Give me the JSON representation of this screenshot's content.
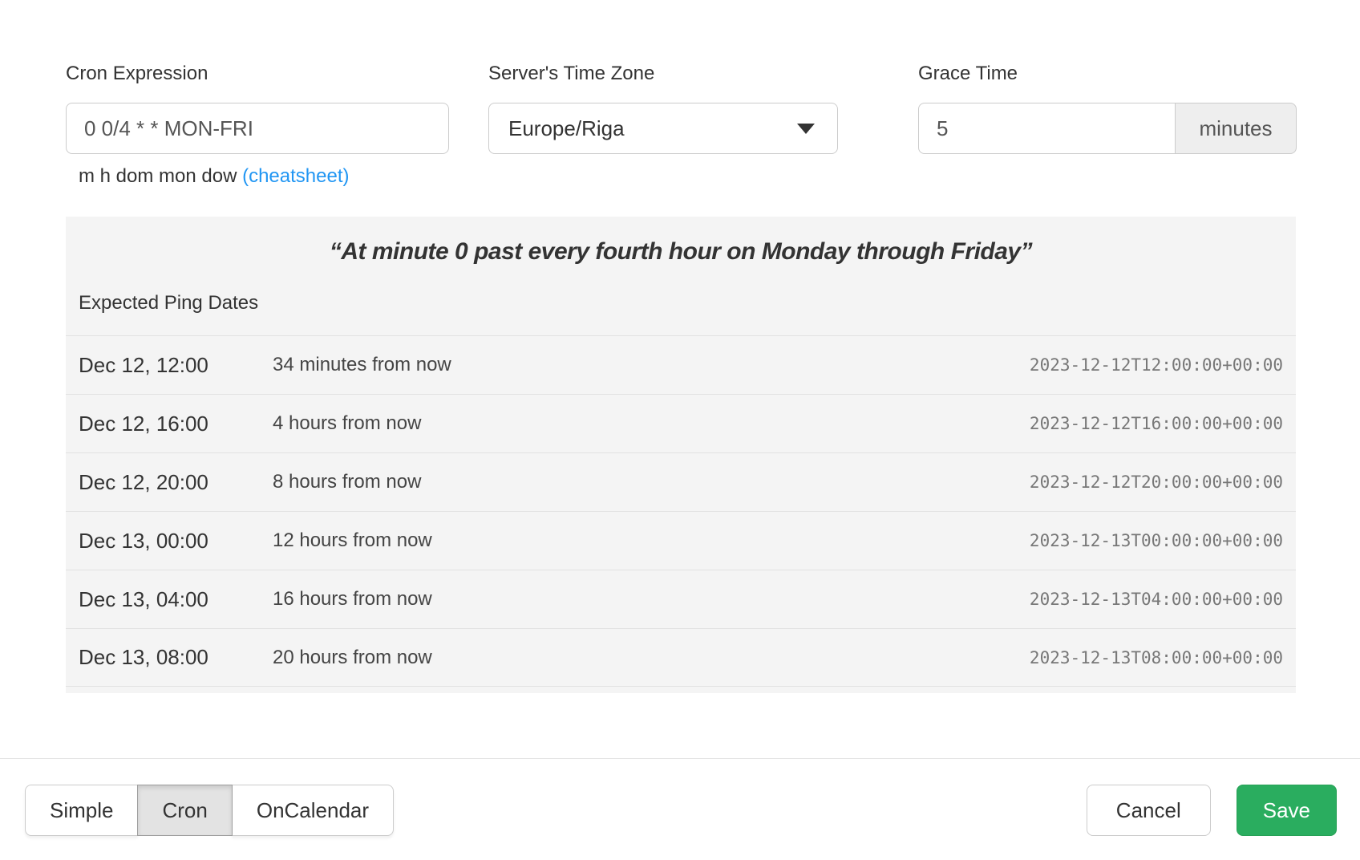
{
  "form": {
    "cron": {
      "label": "Cron Expression",
      "value": "0 0/4 * * MON-FRI",
      "hint_text": "m h dom mon dow",
      "hint_link": "(cheatsheet)"
    },
    "timezone": {
      "label": "Server's Time Zone",
      "value": "Europe/Riga"
    },
    "grace": {
      "label": "Grace Time",
      "value": "5",
      "unit": "minutes"
    }
  },
  "preview": {
    "description": "“At minute 0 past every fourth hour on Monday through Friday”",
    "heading": "Expected Ping Dates",
    "rows": [
      {
        "date": "Dec 12, 12:00",
        "relative": "34 minutes from now",
        "iso": "2023-12-12T12:00:00+00:00"
      },
      {
        "date": "Dec 12, 16:00",
        "relative": "4 hours from now",
        "iso": "2023-12-12T16:00:00+00:00"
      },
      {
        "date": "Dec 12, 20:00",
        "relative": "8 hours from now",
        "iso": "2023-12-12T20:00:00+00:00"
      },
      {
        "date": "Dec 13, 00:00",
        "relative": "12 hours from now",
        "iso": "2023-12-13T00:00:00+00:00"
      },
      {
        "date": "Dec 13, 04:00",
        "relative": "16 hours from now",
        "iso": "2023-12-13T04:00:00+00:00"
      },
      {
        "date": "Dec 13, 08:00",
        "relative": "20 hours from now",
        "iso": "2023-12-13T08:00:00+00:00"
      }
    ]
  },
  "footer": {
    "mode_buttons": [
      {
        "label": "Simple",
        "active": false
      },
      {
        "label": "Cron",
        "active": true
      },
      {
        "label": "OnCalendar",
        "active": false
      }
    ],
    "cancel_label": "Cancel",
    "save_label": "Save"
  },
  "colors": {
    "link_blue": "#2196f3",
    "save_green": "#2aad5f",
    "panel_bg": "#f4f4f4"
  }
}
